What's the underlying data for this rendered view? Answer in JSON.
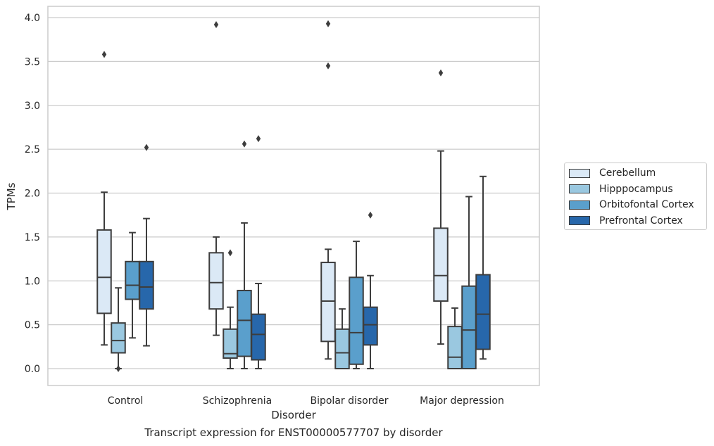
{
  "chart_data": {
    "type": "boxplot",
    "caption": "Transcript expression for ENST00000577707 by disorder",
    "xlabel": "Disorder",
    "ylabel": "TPMs",
    "ylim": [
      -0.2,
      4.12
    ],
    "yticks": [
      "0.0",
      "0.5",
      "1.0",
      "1.5",
      "2.0",
      "2.5",
      "3.0",
      "3.5",
      "4.0"
    ],
    "grid": true,
    "legend_position": "right",
    "categories": [
      "Control",
      "Schizophrenia",
      "Bipolar disorder",
      "Major depression"
    ],
    "series": [
      {
        "name": "Cerebellum",
        "color": "#dbe9f6",
        "boxes": [
          {
            "whislo": 0.27,
            "q1": 0.63,
            "med": 1.04,
            "q3": 1.58,
            "whishi": 2.01,
            "fliers": [
              3.58
            ]
          },
          {
            "whislo": 0.38,
            "q1": 0.68,
            "med": 0.98,
            "q3": 1.32,
            "whishi": 1.5,
            "fliers": [
              3.92
            ]
          },
          {
            "whislo": 0.11,
            "q1": 0.31,
            "med": 0.77,
            "q3": 1.21,
            "whishi": 1.36,
            "fliers": [
              3.45,
              3.93
            ]
          },
          {
            "whislo": 0.28,
            "q1": 0.77,
            "med": 1.06,
            "q3": 1.6,
            "whishi": 2.48,
            "fliers": [
              3.37
            ]
          }
        ]
      },
      {
        "name": "Hipppocampus",
        "color": "#9ac8e0",
        "boxes": [
          {
            "whislo": 0.0,
            "q1": 0.18,
            "med": 0.32,
            "q3": 0.52,
            "whishi": 0.92,
            "fliers": [
              0.0
            ]
          },
          {
            "whislo": 0.0,
            "q1": 0.12,
            "med": 0.17,
            "q3": 0.45,
            "whishi": 0.7,
            "fliers": [
              1.32
            ]
          },
          {
            "whislo": 0.0,
            "q1": 0.0,
            "med": 0.18,
            "q3": 0.45,
            "whishi": 0.68,
            "fliers": []
          },
          {
            "whislo": 0.0,
            "q1": 0.0,
            "med": 0.13,
            "q3": 0.48,
            "whishi": 0.69,
            "fliers": []
          }
        ]
      },
      {
        "name": "Orbitofontal Cortex",
        "color": "#5a9fcc",
        "boxes": [
          {
            "whislo": 0.35,
            "q1": 0.79,
            "med": 0.95,
            "q3": 1.22,
            "whishi": 1.55,
            "fliers": []
          },
          {
            "whislo": 0.0,
            "q1": 0.14,
            "med": 0.55,
            "q3": 0.89,
            "whishi": 1.66,
            "fliers": [
              2.56
            ]
          },
          {
            "whislo": 0.0,
            "q1": 0.05,
            "med": 0.41,
            "q3": 1.04,
            "whishi": 1.45,
            "fliers": []
          },
          {
            "whislo": 0.0,
            "q1": 0.0,
            "med": 0.44,
            "q3": 0.94,
            "whishi": 1.96,
            "fliers": []
          }
        ]
      },
      {
        "name": "Prefrontal Cortex",
        "color": "#2767ab",
        "boxes": [
          {
            "whislo": 0.26,
            "q1": 0.68,
            "med": 0.93,
            "q3": 1.22,
            "whishi": 1.71,
            "fliers": [
              2.52
            ]
          },
          {
            "whislo": 0.0,
            "q1": 0.1,
            "med": 0.39,
            "q3": 0.62,
            "whishi": 0.97,
            "fliers": [
              2.62
            ]
          },
          {
            "whislo": 0.0,
            "q1": 0.27,
            "med": 0.5,
            "q3": 0.7,
            "whishi": 1.06,
            "fliers": [
              1.75
            ]
          },
          {
            "whislo": 0.11,
            "q1": 0.22,
            "med": 0.62,
            "q3": 1.07,
            "whishi": 2.19,
            "fliers": []
          }
        ]
      }
    ]
  }
}
